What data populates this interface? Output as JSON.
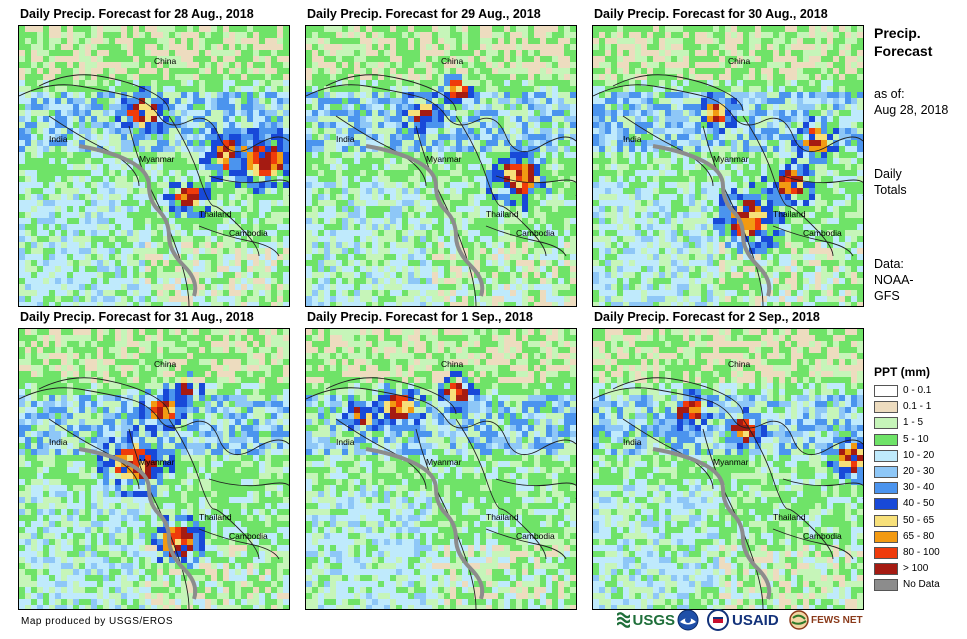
{
  "panels": [
    {
      "title": "Daily Precip. Forecast for 28 Aug., 2018",
      "seed": 11,
      "heavy": [
        [
          0.78,
          0.45,
          0.8
        ],
        [
          0.9,
          0.47,
          0.9
        ],
        [
          0.45,
          0.3,
          0.6
        ],
        [
          0.62,
          0.6,
          0.5
        ]
      ]
    },
    {
      "title": "Daily Precip. Forecast for 29 Aug., 2018",
      "seed": 23,
      "heavy": [
        [
          0.78,
          0.53,
          0.9
        ],
        [
          0.42,
          0.3,
          0.5
        ],
        [
          0.55,
          0.22,
          0.3
        ]
      ]
    },
    {
      "title": "Daily Precip. Forecast for 30 Aug., 2018",
      "seed": 37,
      "heavy": [
        [
          0.57,
          0.68,
          1.0
        ],
        [
          0.72,
          0.55,
          0.6
        ],
        [
          0.82,
          0.4,
          0.5
        ],
        [
          0.45,
          0.3,
          0.4
        ]
      ]
    },
    {
      "title": "Daily Precip. Forecast for 31 Aug., 2018",
      "seed": 41,
      "heavy": [
        [
          0.42,
          0.47,
          1.0
        ],
        [
          0.58,
          0.75,
          0.7
        ],
        [
          0.52,
          0.28,
          0.5
        ],
        [
          0.6,
          0.2,
          0.3
        ]
      ]
    },
    {
      "title": "Daily Precip. Forecast for 1 Sep., 2018",
      "seed": 53,
      "heavy": [
        [
          0.33,
          0.27,
          0.6
        ],
        [
          0.55,
          0.22,
          0.4
        ],
        [
          0.2,
          0.3,
          0.3
        ]
      ]
    },
    {
      "title": "Daily Precip. Forecast for 2 Sep., 2018",
      "seed": 67,
      "heavy": [
        [
          0.35,
          0.28,
          0.5
        ],
        [
          0.95,
          0.45,
          0.6
        ],
        [
          0.55,
          0.35,
          0.4
        ]
      ]
    }
  ],
  "places": {
    "china": "China",
    "india": "India",
    "myanmar": "Myanmar",
    "thailand": "Thailand",
    "cambodia": "Cambodia"
  },
  "sidebar": {
    "title_line1": "Precip.",
    "title_line2": "Forecast",
    "asof_line1": "as of:",
    "asof_line2": "Aug 28, 2018",
    "totals_line1": "Daily",
    "totals_line2": "Totals",
    "data_line1": "Data:",
    "data_line2": "NOAA-",
    "data_line3": "GFS"
  },
  "legend": {
    "title": "PPT (mm)",
    "items": [
      {
        "label": "0 - 0.1",
        "color": "#ffffff"
      },
      {
        "label": "0.1 - 1",
        "color": "#eddcbf"
      },
      {
        "label": "1 - 5",
        "color": "#c6f5b9"
      },
      {
        "label": "5 - 10",
        "color": "#6fe368"
      },
      {
        "label": "10 - 20",
        "color": "#bfeafc"
      },
      {
        "label": "20 - 30",
        "color": "#8ec7f7"
      },
      {
        "label": "30 - 40",
        "color": "#4b94ee"
      },
      {
        "label": "40 - 50",
        "color": "#1849d8"
      },
      {
        "label": "50 - 65",
        "color": "#f7e07a"
      },
      {
        "label": "65 - 80",
        "color": "#f29a12"
      },
      {
        "label": "80 - 100",
        "color": "#ef3b0b"
      },
      {
        "label": "> 100",
        "color": "#a51b12"
      },
      {
        "label": "No Data",
        "color": "#8c8c8c"
      }
    ]
  },
  "credit": "Map produced by USGS/EROS",
  "logos": {
    "usgs": "USGS",
    "usaid": "USAID",
    "fewsnet": "FEWS NET"
  }
}
